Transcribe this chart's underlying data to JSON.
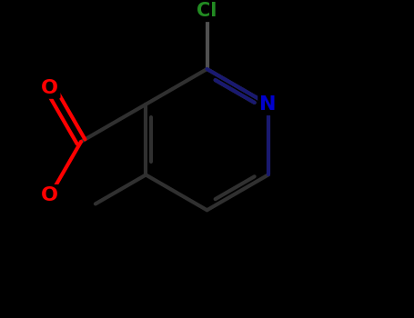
{
  "background_color": "#000000",
  "atom_colors": {
    "C": "#ffffff",
    "N": "#0000cd",
    "O": "#ff0000",
    "Cl": "#228b22"
  },
  "bond_color": "#1a1a1a",
  "bond_color2": "#ffffff",
  "bond_width": 3.0,
  "figsize": [
    4.55,
    3.5
  ],
  "dpi": 100,
  "ring_bond_color": "#1a1a1a"
}
